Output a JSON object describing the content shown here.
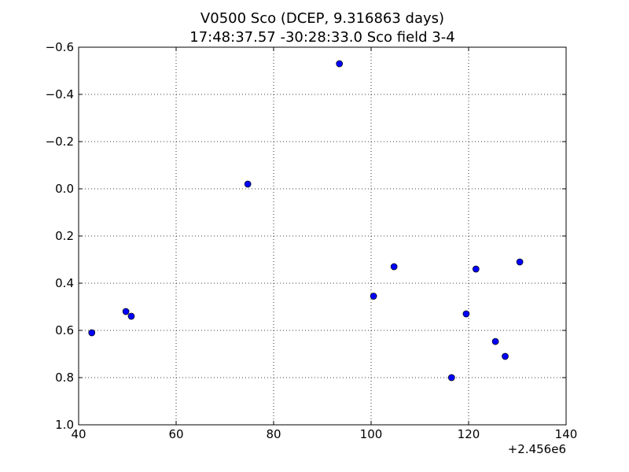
{
  "chart_data": {
    "type": "scatter",
    "title": "V0500 Sco (DCEP, 9.316863 days)",
    "subtitle": "17:48:37.57 -30:28:33.0 Sco field 3-4",
    "xlabel": "",
    "ylabel": "",
    "x_offset_label": "+2.456e6",
    "xlim": [
      40,
      140
    ],
    "ylim": [
      -0.6,
      1.0
    ],
    "y_inverted": true,
    "grid": true,
    "grid_style": "dotted",
    "marker_color": "#0000ff",
    "x_ticks": [
      40,
      60,
      80,
      100,
      120,
      140
    ],
    "x_tick_labels": [
      "40",
      "60",
      "80",
      "100",
      "120",
      "140"
    ],
    "y_ticks": [
      -0.6,
      -0.4,
      -0.2,
      0.0,
      0.2,
      0.4,
      0.6,
      0.8,
      1.0
    ],
    "y_tick_labels": [
      "−0.6",
      "−0.4",
      "−0.2",
      "0.0",
      "0.2",
      "0.4",
      "0.6",
      "0.8",
      "1.0"
    ],
    "points": [
      {
        "x": 42.7,
        "y": 0.61
      },
      {
        "x": 49.7,
        "y": 0.52
      },
      {
        "x": 50.8,
        "y": 0.54
      },
      {
        "x": 74.7,
        "y": -0.02
      },
      {
        "x": 93.5,
        "y": -0.53
      },
      {
        "x": 100.5,
        "y": 0.455
      },
      {
        "x": 104.7,
        "y": 0.33
      },
      {
        "x": 116.5,
        "y": 0.8
      },
      {
        "x": 119.5,
        "y": 0.53
      },
      {
        "x": 121.5,
        "y": 0.34
      },
      {
        "x": 125.5,
        "y": 0.647
      },
      {
        "x": 127.5,
        "y": 0.71
      },
      {
        "x": 130.5,
        "y": 0.31
      }
    ]
  }
}
